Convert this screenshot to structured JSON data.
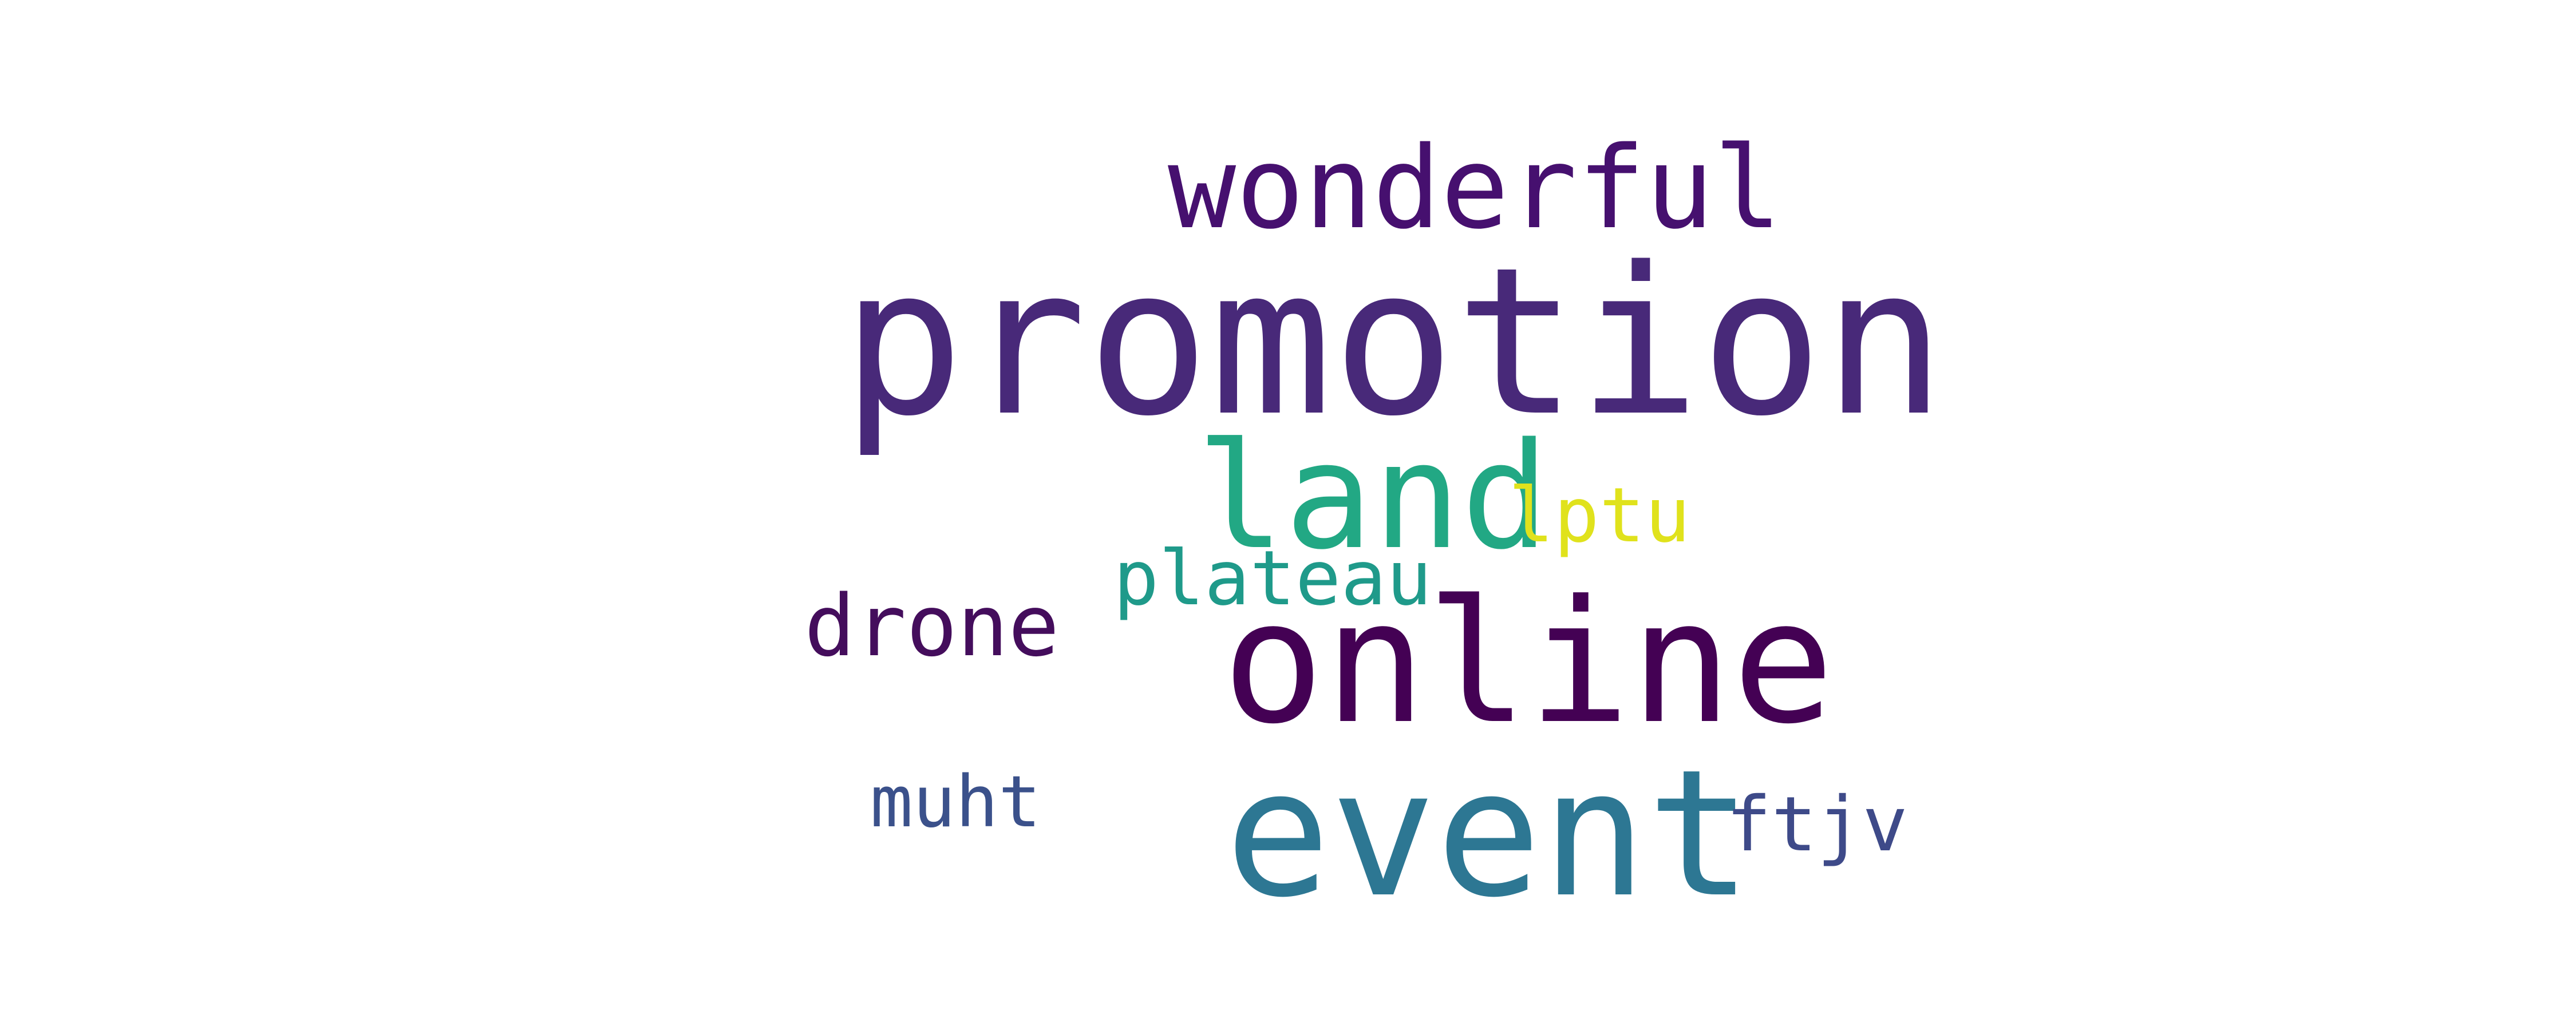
{
  "words": {
    "promotion": {
      "text": "promotion",
      "color": "#482979"
    },
    "wonderful": {
      "text": "wonderful",
      "color": "#46106f"
    },
    "land": {
      "text": "land",
      "color": "#22a884"
    },
    "lptu": {
      "text": "lptu",
      "color": "#e0e21c"
    },
    "plateau": {
      "text": "plateau",
      "color": "#1f9a8a"
    },
    "drone": {
      "text": "drone",
      "color": "#440d5c"
    },
    "online": {
      "text": "online",
      "color": "#440154"
    },
    "event": {
      "text": "event",
      "color": "#2d7793"
    },
    "muht": {
      "text": "muht",
      "color": "#3b518b"
    },
    "ftjv": {
      "text": "ftjv",
      "color": "#3e4a89"
    }
  }
}
